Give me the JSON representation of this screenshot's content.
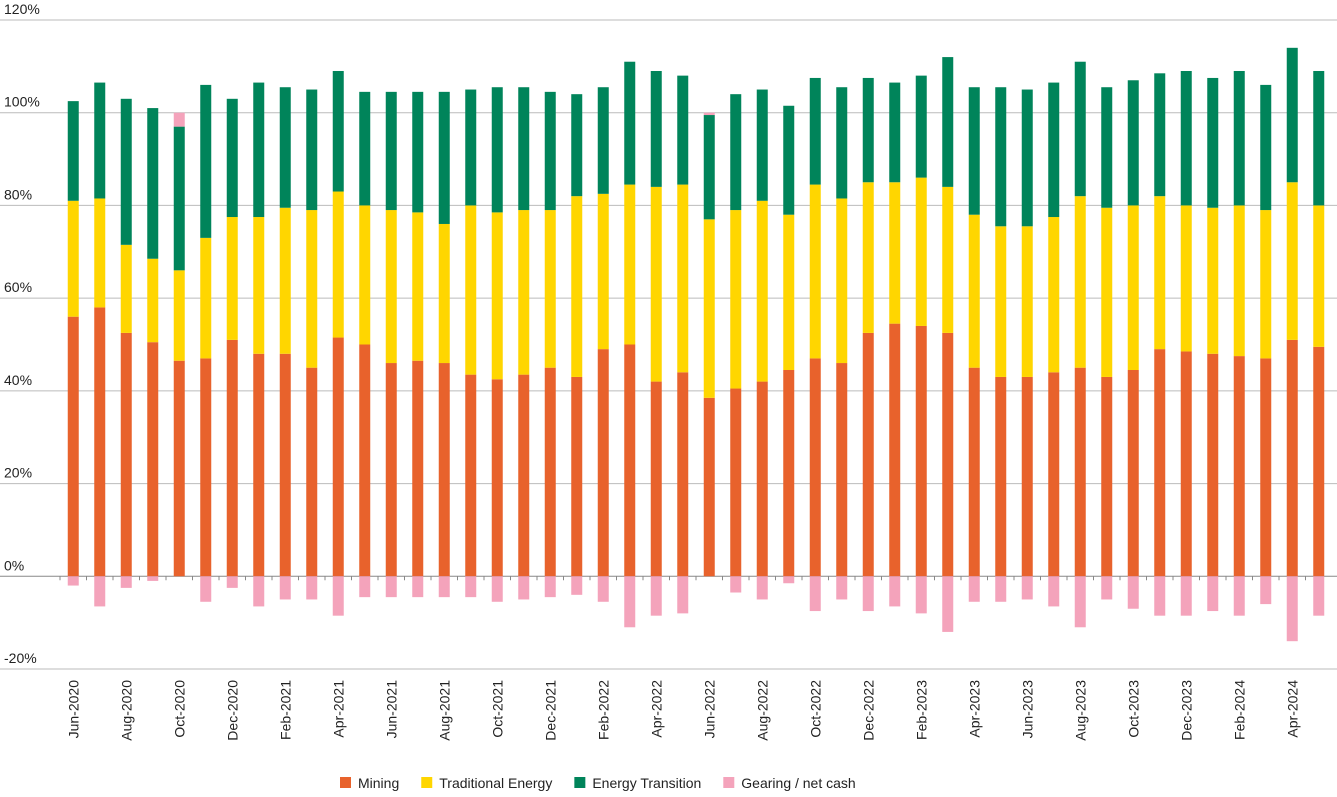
{
  "chart_data": {
    "type": "stacked-bar",
    "categories": [
      "Jun-2020",
      null,
      "Aug-2020",
      null,
      "Oct-2020",
      null,
      "Dec-2020",
      null,
      "Feb-2021",
      null,
      "Apr-2021",
      null,
      "Jun-2021",
      null,
      "Aug-2021",
      null,
      "Oct-2021",
      null,
      "Dec-2021",
      null,
      "Feb-2022",
      null,
      "Apr-2022",
      null,
      "Jun-2022",
      null,
      "Aug-2022",
      null,
      "Oct-2022",
      null,
      "Dec-2022",
      null,
      "Feb-2023",
      null,
      "Apr-2023",
      null,
      "Jun-2023",
      null,
      "Aug-2023",
      null,
      "Oct-2023",
      null,
      "Dec-2023",
      null,
      "Feb-2024",
      null,
      "Apr-2024",
      null
    ],
    "series": [
      {
        "name": "Mining",
        "color": "#e8622c",
        "values": [
          56,
          58,
          52.5,
          50.5,
          46.5,
          47,
          51,
          48,
          48,
          45,
          51.5,
          50,
          46,
          46.5,
          46,
          43.5,
          42.5,
          43.5,
          45,
          43,
          49,
          50,
          42,
          44,
          38.5,
          40.5,
          42,
          44.5,
          47,
          46,
          52.5,
          54.5,
          54,
          52.5,
          45,
          43,
          43,
          44,
          45,
          43,
          44.5,
          49,
          48.5,
          48,
          47.5,
          47,
          51,
          49.5
        ]
      },
      {
        "name": "Traditional Energy",
        "color": "#ffd600",
        "values": [
          25,
          23.5,
          19,
          18,
          19.5,
          26,
          26.5,
          29.5,
          31.5,
          34,
          31.5,
          30,
          33,
          32,
          30,
          36.5,
          36,
          35.5,
          34,
          39,
          33.5,
          34.5,
          42,
          40.5,
          38.5,
          38.5,
          39,
          33.5,
          37.5,
          35.5,
          32.5,
          30.5,
          32,
          31.5,
          33,
          32.5,
          32.5,
          33.5,
          37,
          36.5,
          35.5,
          33,
          31.5,
          31.5,
          32.5,
          32,
          34,
          30.5
        ]
      },
      {
        "name": "Energy Transition",
        "color": "#00845a",
        "values": [
          21.5,
          25,
          31.5,
          32.5,
          31,
          33,
          25.5,
          29,
          26,
          26,
          26,
          24.5,
          25.5,
          26,
          28.5,
          25,
          27,
          26.5,
          25.5,
          22,
          23,
          26.5,
          25,
          23.5,
          22.5,
          25,
          24,
          23.5,
          23,
          24,
          22.5,
          21.5,
          22,
          28,
          27.5,
          30,
          29.5,
          29,
          29,
          26,
          27,
          26.5,
          29,
          28,
          29,
          27,
          29,
          29
        ]
      },
      {
        "name": "Gearing / net cash",
        "color": "#f4a3bb",
        "values": [
          -2,
          -6.5,
          -2.5,
          -1,
          3,
          -5.5,
          -2.5,
          -6.5,
          -5,
          -5,
          -8.5,
          -4.5,
          -4.5,
          -4.5,
          -4.5,
          -4.5,
          -5.5,
          -5,
          -4.5,
          -4,
          -5.5,
          -11,
          -8.5,
          -8,
          0.5,
          -3.5,
          -5,
          -1.5,
          -7.5,
          -5,
          -7.5,
          -6.5,
          -8,
          -12,
          -5.5,
          -5.5,
          -5,
          -6.5,
          -11,
          -5,
          -7,
          -8.5,
          -8.5,
          -7.5,
          -8.5,
          -6,
          -14,
          -8.5
        ]
      }
    ],
    "ylim": [
      -20,
      120
    ],
    "yticks": [
      {
        "value": -20,
        "label": "-20%"
      },
      {
        "value": 0,
        "label": "0%"
      },
      {
        "value": 20,
        "label": "20%"
      },
      {
        "value": 40,
        "label": "40%"
      },
      {
        "value": 60,
        "label": "60%"
      },
      {
        "value": 80,
        "label": "80%"
      },
      {
        "value": 100,
        "label": "100%"
      },
      {
        "value": 120,
        "label": "120%"
      }
    ],
    "grid": true,
    "legend": "bottom"
  }
}
